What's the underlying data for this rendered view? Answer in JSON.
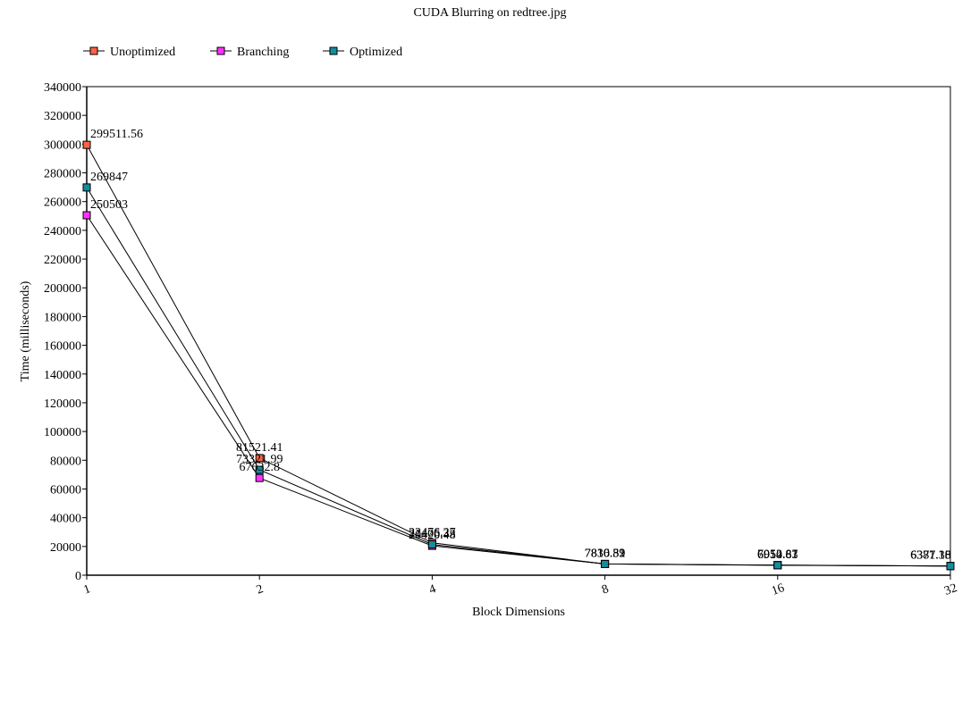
{
  "chart_data": {
    "type": "line",
    "title": "CUDA Blurring on redtree.jpg",
    "xlabel": "Block Dimensions",
    "ylabel": "Time (milliseconds)",
    "x_scale": "log2",
    "categories": [
      "1",
      "2",
      "4",
      "8",
      "16",
      "32"
    ],
    "x": [
      1,
      2,
      4,
      8,
      16,
      32
    ],
    "ylim": [
      0,
      340000
    ],
    "yticks": [
      0,
      20000,
      40000,
      60000,
      80000,
      100000,
      120000,
      140000,
      160000,
      180000,
      200000,
      220000,
      240000,
      260000,
      280000,
      300000,
      320000,
      340000
    ],
    "grid": false,
    "legend_position": "top-left",
    "series": [
      {
        "name": "Unoptimized",
        "color": "#ff6347",
        "values": [
          299511.56,
          81521.41,
          22476.27,
          7816.82,
          7052.87,
          6377.36
        ],
        "labels": [
          "299511.56",
          "81521.41",
          "22476.27",
          "7816.82",
          "7052.87",
          "6377.36"
        ]
      },
      {
        "name": "Branching",
        "color": "#ff33ff",
        "values": [
          250503,
          67632.8,
          20420.48,
          7830.51,
          6954.63,
          6381.18
        ],
        "labels": [
          "250503",
          "67632.8",
          "20420.48",
          "7830.51",
          "6954.63",
          "6381.18"
        ]
      },
      {
        "name": "Optimized",
        "color": "#138ea0",
        "values": [
          269847,
          73321.99,
          21406.33,
          7810.39,
          6910.81,
          6377.15
        ],
        "labels": [
          "269847",
          "73321.99",
          "21406.33",
          "7810.39",
          "6910.81",
          "6377.15"
        ]
      }
    ]
  }
}
